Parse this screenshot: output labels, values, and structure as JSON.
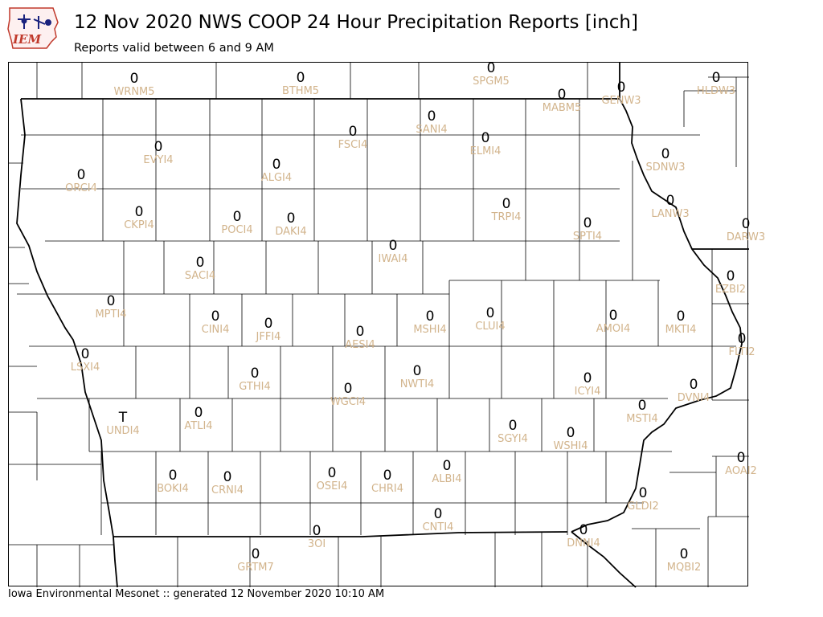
{
  "header": {
    "logo_text": "IEM",
    "title": "12 Nov 2020 NWS COOP 24 Hour Precipitation Reports [inch]",
    "subtitle": "Reports valid between 6 and 9 AM"
  },
  "footer": {
    "text": "Iowa Environmental Mesonet :: generated 12 November 2020 10:10 AM"
  },
  "colors": {
    "value": "#000000",
    "station_id": "#d2b48c",
    "state_border": "#000000",
    "county_border": "#000000"
  },
  "stations": [
    {
      "id": "WRNM5",
      "value": "0"
    },
    {
      "id": "BTHM5",
      "value": "0"
    },
    {
      "id": "SPGM5",
      "value": "0"
    },
    {
      "id": "MABM5",
      "value": "0"
    },
    {
      "id": "GENW3",
      "value": "0"
    },
    {
      "id": "HLDW3",
      "value": "0"
    },
    {
      "id": "SANI4",
      "value": "0"
    },
    {
      "id": "FSCI4",
      "value": "0"
    },
    {
      "id": "ELMI4",
      "value": "0"
    },
    {
      "id": "EVYI4",
      "value": "0"
    },
    {
      "id": "ALGI4",
      "value": "0"
    },
    {
      "id": "ORCI4",
      "value": "0"
    },
    {
      "id": "SDNW3",
      "value": "0"
    },
    {
      "id": "LANW3",
      "value": "0"
    },
    {
      "id": "TRPI4",
      "value": "0"
    },
    {
      "id": "CKPI4",
      "value": "0"
    },
    {
      "id": "POCI4",
      "value": "0"
    },
    {
      "id": "DAKI4",
      "value": "0"
    },
    {
      "id": "SPTI4",
      "value": "0"
    },
    {
      "id": "DARW3",
      "value": "0"
    },
    {
      "id": "IWAI4",
      "value": "0"
    },
    {
      "id": "SACI4",
      "value": "0"
    },
    {
      "id": "EZBI2",
      "value": "0"
    },
    {
      "id": "MPTI4",
      "value": "0"
    },
    {
      "id": "CINI4",
      "value": "0"
    },
    {
      "id": "JFFI4",
      "value": "0"
    },
    {
      "id": "AESI4",
      "value": "0"
    },
    {
      "id": "MSHI4",
      "value": "0"
    },
    {
      "id": "CLUI4",
      "value": "0"
    },
    {
      "id": "AMOI4",
      "value": "0"
    },
    {
      "id": "MKTI4",
      "value": "0"
    },
    {
      "id": "FLTI2",
      "value": "0"
    },
    {
      "id": "LSXI4",
      "value": "0"
    },
    {
      "id": "GTHI4",
      "value": "0"
    },
    {
      "id": "NWTI4",
      "value": "0"
    },
    {
      "id": "WGCI4",
      "value": "0"
    },
    {
      "id": "ICYI4",
      "value": "0"
    },
    {
      "id": "DVNI4",
      "value": "0"
    },
    {
      "id": "UNDI4",
      "value": "T"
    },
    {
      "id": "ATLI4",
      "value": "0"
    },
    {
      "id": "MSTI4",
      "value": "0"
    },
    {
      "id": "SGYI4",
      "value": "0"
    },
    {
      "id": "WSHI4",
      "value": "0"
    },
    {
      "id": "AOAI2",
      "value": "0"
    },
    {
      "id": "BOKI4",
      "value": "0"
    },
    {
      "id": "CRNI4",
      "value": "0"
    },
    {
      "id": "OSEI4",
      "value": "0"
    },
    {
      "id": "CHRI4",
      "value": "0"
    },
    {
      "id": "ALBI4",
      "value": "0"
    },
    {
      "id": "CNTI4",
      "value": "0"
    },
    {
      "id": "GLDI2",
      "value": "0"
    },
    {
      "id": "3OI",
      "value": "0"
    },
    {
      "id": "DNNI4",
      "value": "0"
    },
    {
      "id": "GRTM7",
      "value": "0"
    },
    {
      "id": "MQBI2",
      "value": "0"
    }
  ]
}
